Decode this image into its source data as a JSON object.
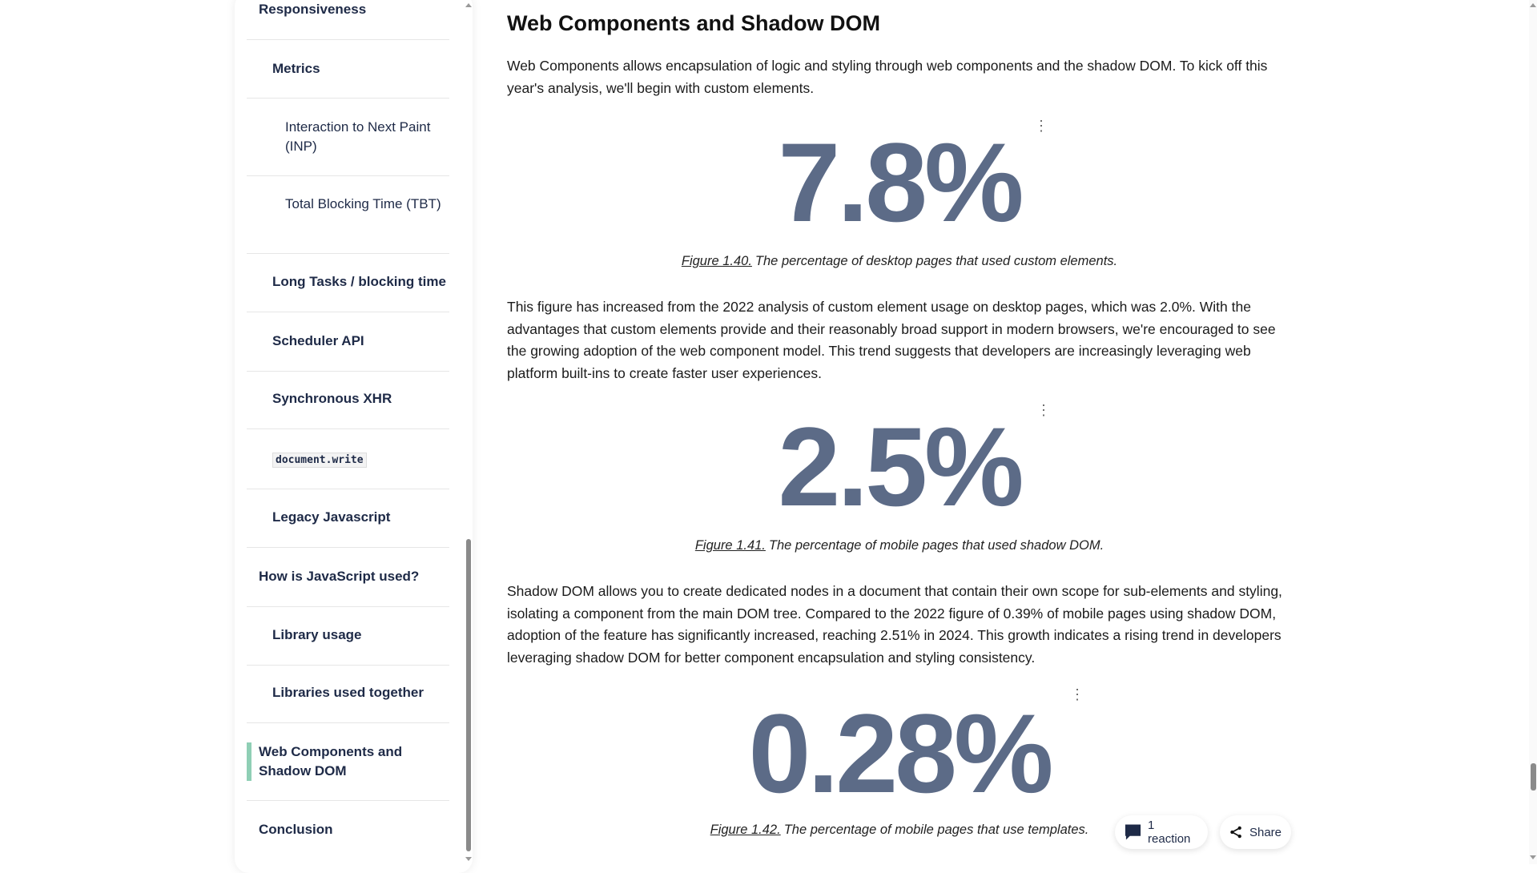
{
  "sidebar": {
    "items": [
      {
        "label": "Responsiveness",
        "level": 1
      },
      {
        "label": "Metrics",
        "level": 2
      },
      {
        "label": "Interaction to Next Paint (INP)",
        "level": 3
      },
      {
        "label": "Total Blocking Time (TBT)",
        "level": 3
      },
      {
        "label": "Long Tasks / blocking time",
        "level": 2
      },
      {
        "label": "Scheduler API",
        "level": 2
      },
      {
        "label": "Synchronous XHR",
        "level": 2
      },
      {
        "label": "document.write",
        "level": 2
      },
      {
        "label": "Legacy Javascript",
        "level": 2
      },
      {
        "label": "How is JavaScript used?",
        "level": 1
      },
      {
        "label": "Library usage",
        "level": 2
      },
      {
        "label": "Libraries used together",
        "level": 2
      },
      {
        "label": "Web Components and Shadow DOM",
        "level": 1,
        "active": true
      },
      {
        "label": "Conclusion",
        "level": 1
      }
    ],
    "active_color": "#8fcfb5"
  },
  "main": {
    "heading": "Web Components and Shadow DOM",
    "paragraphs": [
      "Web Components allows encapsulation of logic and styling through web components and the shadow DOM. To kick off this year's analysis, we'll begin with custom elements.",
      "This figure has increased from the 2022 analysis of custom element usage on desktop pages, which was 2.0%. With the advantages that custom elements provide and their reasonably broad support in modern browsers, we're encouraged to see the growing adoption of the web component model. This trend suggests that developers are increasingly leveraging web platform built-ins to create faster user experiences.",
      "Shadow DOM allows you to create dedicated nodes in a document that contain their own scope for sub-elements and styling, isolating a component from the main DOM tree. Compared to the 2022 figure of 0.39% of mobile pages using shadow DOM, adoption of the feature has significantly increased, reaching 2.51% in 2024. This growth indicates a rising trend in developers leveraging shadow DOM for better component encapsulation and styling consistency."
    ],
    "figures": [
      {
        "value": "7.8%",
        "label": "Figure 1.40.",
        "caption": "The percentage of desktop pages that used custom elements."
      },
      {
        "value": "2.5%",
        "label": "Figure 1.41.",
        "caption": "The percentage of mobile pages that used shadow DOM."
      },
      {
        "value": "0.28%",
        "label": "Figure 1.42.",
        "caption": "The percentage of mobile pages that use templates."
      }
    ],
    "figure_color": "#5c6b87"
  },
  "actions": {
    "reaction_label": "1 reaction",
    "share_label": "Share"
  }
}
